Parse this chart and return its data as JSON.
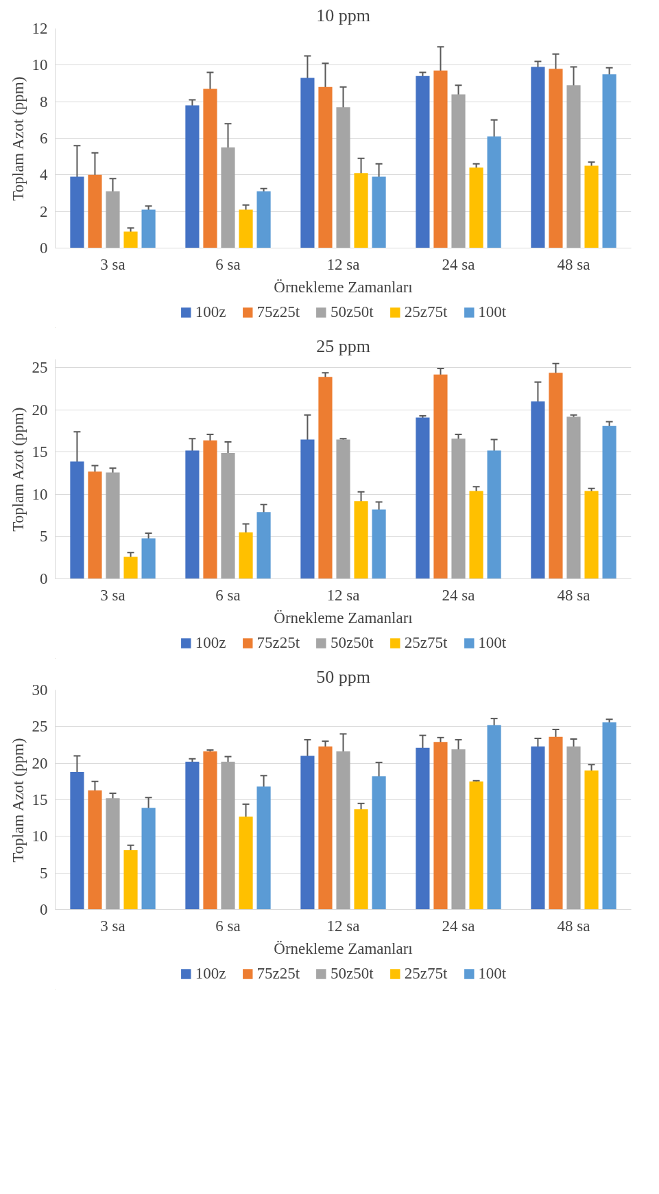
{
  "chart_data": [
    {
      "type": "bar",
      "title": "10 ppm",
      "xlabel": "Örnekleme Zamanları",
      "ylabel": "Toplam Azot (ppm)",
      "categories": [
        "3 sa",
        "6 sa",
        "12 sa",
        "24 sa",
        "48 sa"
      ],
      "ylim": [
        0,
        12
      ],
      "yticks": [
        0,
        2,
        4,
        6,
        8,
        10,
        12
      ],
      "grid": "y",
      "legend": "bottom",
      "series": [
        {
          "name": "100z",
          "color": "#4472c4",
          "values": [
            3.9,
            7.8,
            9.3,
            9.4,
            9.9
          ],
          "errors": [
            1.7,
            0.3,
            1.2,
            0.2,
            0.3
          ]
        },
        {
          "name": "75z25t",
          "color": "#ed7d31",
          "values": [
            4.0,
            8.7,
            8.8,
            9.7,
            9.8
          ],
          "errors": [
            1.2,
            0.9,
            1.3,
            1.3,
            0.8
          ]
        },
        {
          "name": "50z50t",
          "color": "#a5a5a5",
          "values": [
            3.1,
            5.5,
            7.7,
            8.4,
            8.9
          ],
          "errors": [
            0.7,
            1.3,
            1.1,
            0.5,
            1.0
          ]
        },
        {
          "name": "25z75t",
          "color": "#ffc000",
          "values": [
            0.9,
            2.1,
            4.1,
            4.4,
            4.5
          ],
          "errors": [
            0.2,
            0.25,
            0.8,
            0.2,
            0.2
          ]
        },
        {
          "name": "100t",
          "color": "#5b9bd5",
          "values": [
            2.1,
            3.1,
            3.9,
            6.1,
            9.5
          ],
          "errors": [
            0.2,
            0.15,
            0.7,
            0.9,
            0.35
          ]
        }
      ]
    },
    {
      "type": "bar",
      "title": "25 ppm",
      "xlabel": "Örnekleme Zamanları",
      "ylabel": "Toplam Azot (ppm)",
      "categories": [
        "3 sa",
        "6 sa",
        "12 sa",
        "24 sa",
        "48 sa"
      ],
      "ylim": [
        0,
        26
      ],
      "yticks": [
        0,
        5,
        10,
        15,
        20,
        25
      ],
      "grid": "y",
      "legend": "bottom",
      "series": [
        {
          "name": "100z",
          "color": "#4472c4",
          "values": [
            13.9,
            15.2,
            16.5,
            19.1,
            21.0
          ],
          "errors": [
            3.5,
            1.4,
            2.9,
            0.2,
            2.3
          ]
        },
        {
          "name": "75z25t",
          "color": "#ed7d31",
          "values": [
            12.7,
            16.4,
            23.9,
            24.2,
            24.4
          ],
          "errors": [
            0.7,
            0.7,
            0.5,
            0.7,
            1.1
          ]
        },
        {
          "name": "50z50t",
          "color": "#a5a5a5",
          "values": [
            12.6,
            14.9,
            16.5,
            16.6,
            19.2
          ],
          "errors": [
            0.5,
            1.3,
            0.1,
            0.5,
            0.2
          ]
        },
        {
          "name": "25z75t",
          "color": "#ffc000",
          "values": [
            2.6,
            5.5,
            9.2,
            10.4,
            10.4
          ],
          "errors": [
            0.5,
            1.0,
            1.1,
            0.5,
            0.3
          ]
        },
        {
          "name": "100t",
          "color": "#5b9bd5",
          "values": [
            4.8,
            7.9,
            8.2,
            15.2,
            18.1
          ],
          "errors": [
            0.6,
            0.9,
            0.9,
            1.3,
            0.5
          ]
        }
      ]
    },
    {
      "type": "bar",
      "title": "50 ppm",
      "xlabel": "Örnekleme Zamanları",
      "ylabel": "Toplam Azot (ppm)",
      "categories": [
        "3 sa",
        "6 sa",
        "12 sa",
        "24 sa",
        "48 sa"
      ],
      "ylim": [
        0,
        30
      ],
      "yticks": [
        0,
        5,
        10,
        15,
        20,
        25,
        30
      ],
      "grid": "y",
      "legend": "bottom",
      "series": [
        {
          "name": "100z",
          "color": "#4472c4",
          "values": [
            18.8,
            20.2,
            21.0,
            22.1,
            22.3
          ],
          "errors": [
            2.2,
            0.4,
            2.2,
            1.7,
            1.1
          ]
        },
        {
          "name": "75z25t",
          "color": "#ed7d31",
          "values": [
            16.3,
            21.6,
            22.3,
            22.9,
            23.6
          ],
          "errors": [
            1.2,
            0.2,
            0.7,
            0.6,
            1.0
          ]
        },
        {
          "name": "50z50t",
          "color": "#a5a5a5",
          "values": [
            15.2,
            20.2,
            21.6,
            21.9,
            22.3
          ],
          "errors": [
            0.7,
            0.7,
            2.4,
            1.3,
            1.0
          ]
        },
        {
          "name": "25z75t",
          "color": "#ffc000",
          "values": [
            8.1,
            12.7,
            13.7,
            17.5,
            19.0
          ],
          "errors": [
            0.7,
            1.7,
            0.8,
            0.1,
            0.8
          ]
        },
        {
          "name": "100t",
          "color": "#5b9bd5",
          "values": [
            13.9,
            16.8,
            18.2,
            25.2,
            25.6
          ],
          "errors": [
            1.4,
            1.5,
            1.9,
            0.9,
            0.4
          ]
        }
      ]
    }
  ]
}
